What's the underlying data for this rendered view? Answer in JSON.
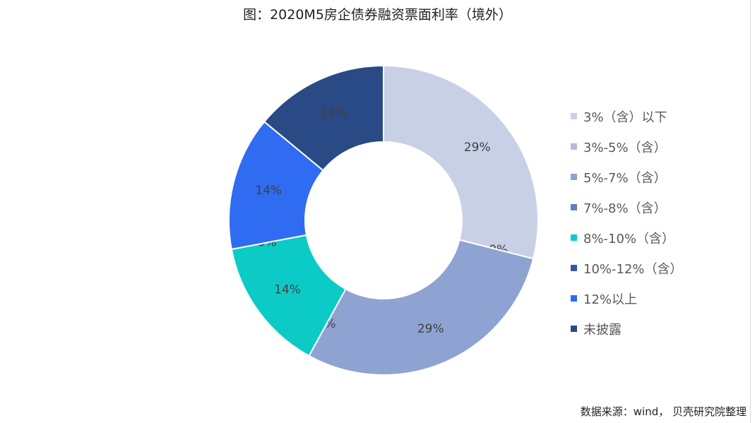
{
  "chart_data": {
    "type": "pie",
    "title": "图：2020M5房企债券融资票面利率（境外）",
    "categories": [
      "3%（含）以下",
      "3%-5%（含）",
      "5%-7%（含）",
      "7%-8%（含）",
      "8%-10%（含）",
      "10%-12%（含）",
      "12%以上",
      "未披露"
    ],
    "values": [
      29,
      0,
      29,
      0,
      14,
      0,
      14,
      14
    ],
    "data_labels": [
      "29%",
      "0%",
      "29%",
      "0%",
      "14%",
      "0%",
      "14%",
      "14%"
    ],
    "colors": [
      "#c8d0e6",
      "#b1bbdd",
      "#8fa3d2",
      "#5f7fc0",
      "#0ccbc6",
      "#3456a6",
      "#2f6cf1",
      "#2a4a86"
    ],
    "donut": true,
    "legend_position": "right"
  },
  "source_note": "数据来源：wind， 贝壳研究院整理"
}
